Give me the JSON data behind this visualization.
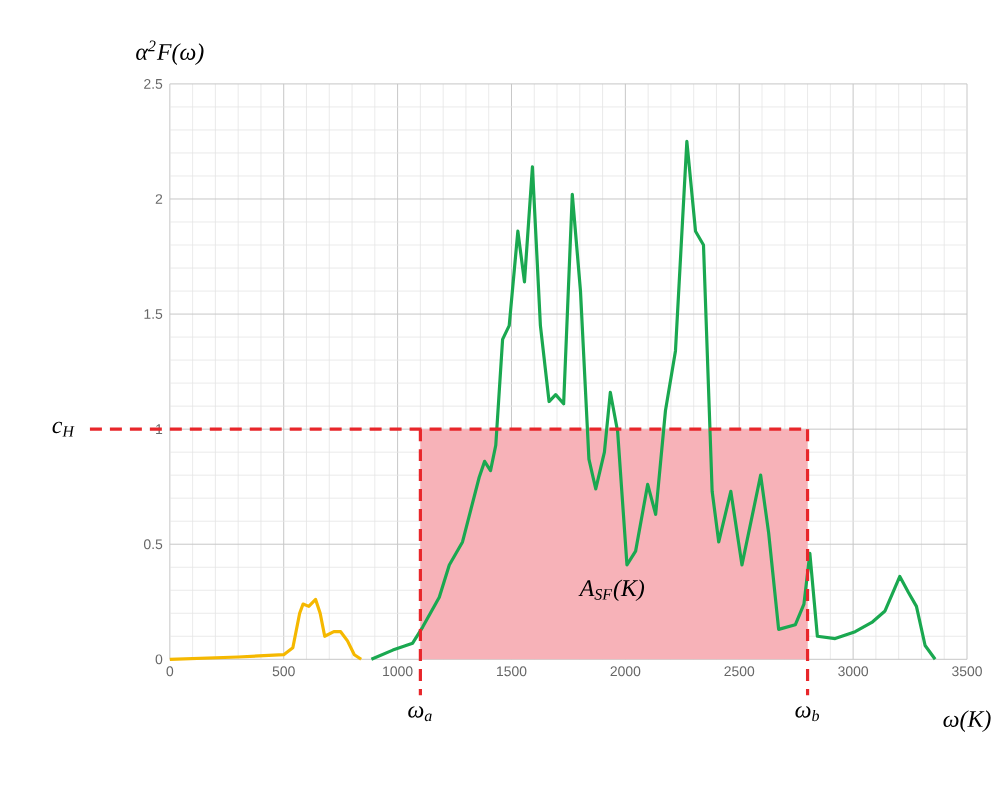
{
  "chart_data": {
    "type": "line",
    "xlabel": "ω(K)",
    "ylabel": "α$^{2}$F(ω)",
    "xlim": [
      0,
      3500
    ],
    "ylim": [
      0,
      2.5
    ],
    "xticks": [
      0,
      500,
      1000,
      1500,
      2000,
      2500,
      3000,
      3500
    ],
    "yticks": [
      0,
      0.5,
      1,
      1.5,
      2,
      2.5
    ],
    "grid": true,
    "series": [
      {
        "type": "area",
        "color": "#f7b2b8",
        "x": [
          1100,
          2800
        ],
        "values": [
          1,
          1
        ]
      },
      {
        "color": "#f5b800",
        "x": [
          0,
          300,
          500,
          540,
          570,
          585,
          610,
          640,
          660,
          680,
          720,
          750,
          780,
          810,
          840
        ],
        "values": [
          0,
          0.01,
          0.02,
          0.05,
          0.2,
          0.24,
          0.23,
          0.26,
          0.2,
          0.1,
          0.12,
          0.12,
          0.08,
          0.02,
          0
        ]
      },
      {
        "color": "#1aa850",
        "x": [
          885,
          979,
          1066,
          1110,
          1183,
          1227,
          1285,
          1358,
          1382,
          1408,
          1431,
          1461,
          1490,
          1528,
          1557,
          1592,
          1627,
          1665,
          1694,
          1729,
          1767,
          1803,
          1840,
          1870,
          1908,
          1934,
          1966,
          2007,
          2045,
          2098,
          2133,
          2176,
          2220,
          2270,
          2308,
          2343,
          2381,
          2410,
          2463,
          2512,
          2594,
          2629,
          2673,
          2746,
          2784,
          2810,
          2843,
          2921,
          3009,
          3082,
          3140,
          3205,
          3243,
          3278,
          3316,
          3360
        ],
        "values": [
          0,
          0.04,
          0.07,
          0.14,
          0.27,
          0.41,
          0.51,
          0.79,
          0.86,
          0.82,
          0.93,
          1.39,
          1.45,
          1.86,
          1.64,
          2.14,
          1.45,
          1.12,
          1.15,
          1.11,
          2.02,
          1.6,
          0.87,
          0.74,
          0.9,
          1.16,
          0.99,
          0.41,
          0.47,
          0.76,
          0.63,
          1.08,
          1.34,
          2.25,
          1.86,
          1.8,
          0.73,
          0.51,
          0.73,
          0.41,
          0.8,
          0.55,
          0.13,
          0.15,
          0.24,
          0.46,
          0.1,
          0.09,
          0.12,
          0.16,
          0.21,
          0.36,
          0.29,
          0.23,
          0.06,
          0
        ]
      }
    ],
    "ref_lines": [
      {
        "axis": "y",
        "value": 1,
        "label": "c$_{H}$",
        "color": "#e8262a",
        "line_style": "dashed"
      },
      {
        "axis": "x",
        "value": 1100,
        "label": "ω$_{a}$",
        "color": "#e8262a",
        "line_style": "dashed"
      },
      {
        "axis": "x",
        "value": 2800,
        "label": "ω$_{b}$",
        "color": "#e8262a",
        "line_style": "dashed"
      }
    ],
    "annotations": [
      "A$_{SF}$(K)"
    ]
  }
}
